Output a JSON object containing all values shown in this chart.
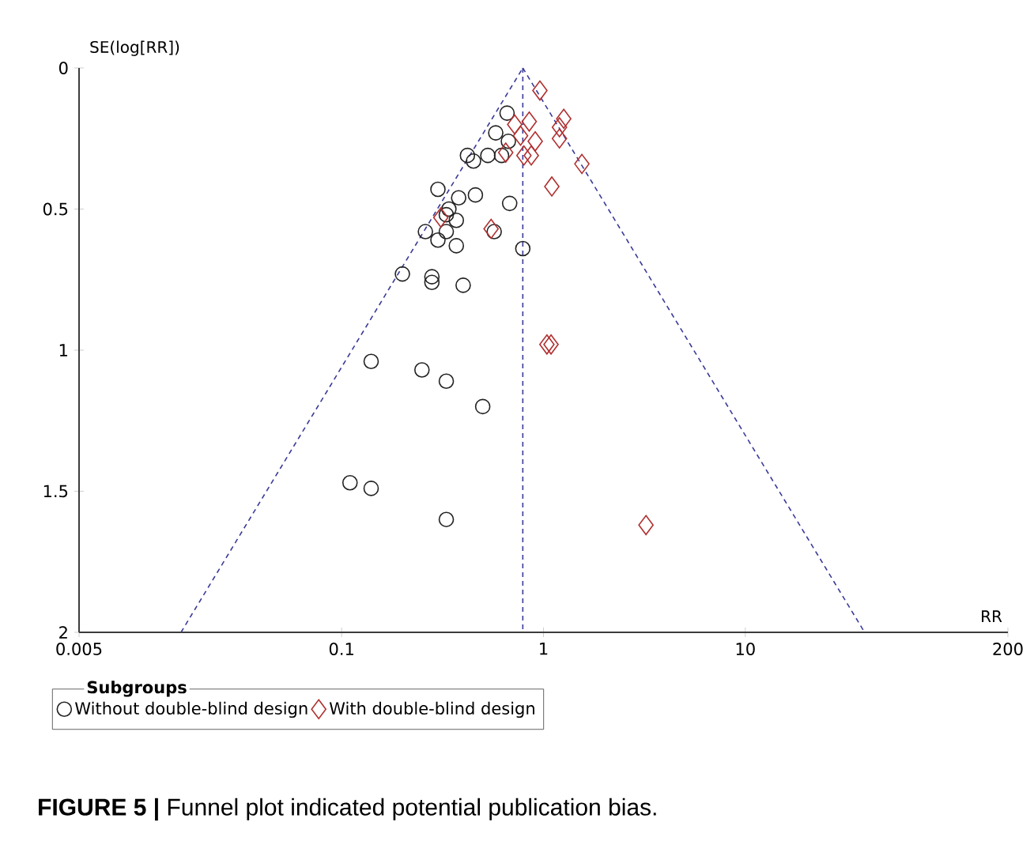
{
  "chart_data": {
    "type": "scatter",
    "xlabel": "RR",
    "ylabel": "SE(log[RR])",
    "legend_title": "Subgroups",
    "log": "x",
    "xlim": [
      0.005,
      200
    ],
    "xticks": [
      0.005,
      0.1,
      1,
      10,
      200
    ],
    "ylim": [
      2,
      0
    ],
    "yticks": [
      0,
      0.5,
      1,
      1.5,
      2
    ],
    "grid": false,
    "legend": "bottom",
    "series": [
      {
        "name": "Without double-blind design",
        "marker": "circle",
        "color": "#222222",
        "x": [
          0.66,
          0.58,
          0.67,
          0.42,
          0.45,
          0.53,
          0.62,
          0.3,
          0.38,
          0.46,
          0.68,
          0.34,
          0.33,
          0.37,
          0.26,
          0.33,
          0.3,
          0.37,
          0.57,
          0.79,
          0.2,
          0.28,
          0.28,
          0.4,
          0.14,
          0.25,
          0.33,
          0.5,
          0.11,
          0.14,
          0.33
        ],
        "values": [
          0.16,
          0.23,
          0.26,
          0.31,
          0.33,
          0.31,
          0.31,
          0.43,
          0.46,
          0.45,
          0.48,
          0.5,
          0.52,
          0.54,
          0.58,
          0.58,
          0.61,
          0.63,
          0.58,
          0.64,
          0.73,
          0.74,
          0.76,
          0.77,
          1.04,
          1.07,
          1.11,
          1.2,
          1.47,
          1.49,
          1.6
        ]
      },
      {
        "name": "With double-blind design",
        "marker": "diamond",
        "color": "#b03030",
        "x": [
          0.96,
          0.72,
          0.85,
          1.26,
          1.2,
          0.77,
          0.91,
          1.2,
          0.65,
          0.8,
          0.87,
          1.55,
          1.1,
          0.31,
          0.55,
          1.04,
          1.09,
          3.22
        ],
        "values": [
          0.08,
          0.2,
          0.19,
          0.18,
          0.21,
          0.24,
          0.26,
          0.25,
          0.3,
          0.31,
          0.31,
          0.34,
          0.42,
          0.53,
          0.57,
          0.98,
          0.98,
          1.62
        ]
      },
      {
        "type": "line",
        "marker": "none",
        "line_style": "dashed",
        "color": "#3a3a9a",
        "x": [
          0.016,
          0.79
        ],
        "values": [
          2,
          0
        ]
      },
      {
        "type": "line",
        "marker": "none",
        "line_style": "dashed",
        "color": "#3a3a9a",
        "x": [
          0.79,
          39
        ],
        "values": [
          0,
          2
        ]
      }
    ],
    "ref_lines": [
      {
        "axis": "x",
        "value": 0.79,
        "color": "#3a3a9a",
        "line_style": "dashed"
      }
    ],
    "annotations": [
      "**FIGURE 5 |** Funnel plot indicated potential publication bias."
    ]
  }
}
